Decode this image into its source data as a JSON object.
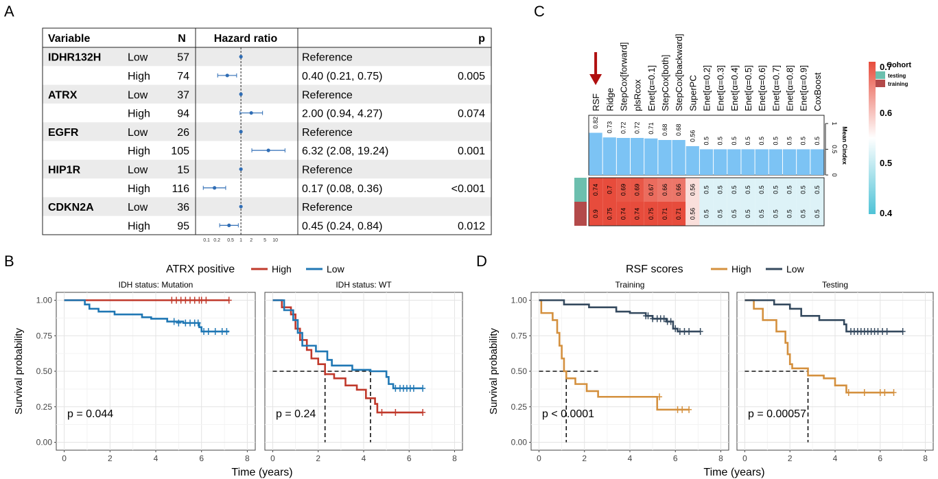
{
  "panel_labels": [
    "A",
    "B",
    "C",
    "D"
  ],
  "forest": {
    "headers": {
      "variable": "Variable",
      "n": "N",
      "hr": "Hazard ratio",
      "p": "p"
    },
    "rows": [
      {
        "variable": "IDHR132H",
        "level": "Low",
        "n": "57",
        "text": "Reference",
        "p": "",
        "hr": 1,
        "lo": 1,
        "hi": 1,
        "ref": true
      },
      {
        "variable": "",
        "level": "High",
        "n": "74",
        "text": "0.40 (0.21, 0.75)",
        "p": "0.005",
        "hr": 0.4,
        "lo": 0.21,
        "hi": 0.75,
        "ref": false
      },
      {
        "variable": "ATRX",
        "level": "Low",
        "n": "37",
        "text": "Reference",
        "p": "",
        "hr": 1,
        "lo": 1,
        "hi": 1,
        "ref": true
      },
      {
        "variable": "",
        "level": "High",
        "n": "94",
        "text": "2.00 (0.94, 4.27)",
        "p": "0.074",
        "hr": 2.0,
        "lo": 0.94,
        "hi": 4.27,
        "ref": false
      },
      {
        "variable": "EGFR",
        "level": "Low",
        "n": "26",
        "text": "Reference",
        "p": "",
        "hr": 1,
        "lo": 1,
        "hi": 1,
        "ref": true
      },
      {
        "variable": "",
        "level": "High",
        "n": "105",
        "text": "6.32 (2.08, 19.24)",
        "p": "0.001",
        "hr": 6.32,
        "lo": 2.08,
        "hi": 19.24,
        "ref": false
      },
      {
        "variable": "HIP1R",
        "level": "Low",
        "n": "15",
        "text": "Reference",
        "p": "",
        "hr": 1,
        "lo": 1,
        "hi": 1,
        "ref": true
      },
      {
        "variable": "",
        "level": "High",
        "n": "116",
        "text": "0.17 (0.08, 0.36)",
        "p": "<0.001",
        "hr": 0.17,
        "lo": 0.08,
        "hi": 0.36,
        "ref": false
      },
      {
        "variable": "CDKN2A",
        "level": "Low",
        "n": "36",
        "text": "Reference",
        "p": "",
        "hr": 1,
        "lo": 1,
        "hi": 1,
        "ref": true
      },
      {
        "variable": "",
        "level": "High",
        "n": "95",
        "text": "0.45 (0.24, 0.84)",
        "p": "0.012",
        "hr": 0.45,
        "lo": 0.24,
        "hi": 0.84,
        "ref": false
      }
    ],
    "axis_ticks": [
      0.1,
      0.2,
      0.5,
      1,
      2,
      5,
      10
    ],
    "axis_tick_labels": [
      "0.1",
      "0.2",
      "0.5",
      "1",
      "2",
      "5",
      "10"
    ],
    "colors": {
      "point": "#2f6db5",
      "band": "#ebebeb"
    }
  },
  "heatmap": {
    "models": [
      "RSF",
      "Ridge",
      "StepCox[forward]",
      "plsRcox",
      "Enet[α=0.1]",
      "StepCox[both]",
      "StepCox[backward]",
      "SuperPC",
      "Enet[α=0.2]",
      "Enet[α=0.3]",
      "Enet[α=0.4]",
      "Enet[α=0.5]",
      "Enet[α=0.6]",
      "Enet[α=0.7]",
      "Enet[α=0.8]",
      "Enet[α=0.9]",
      "CoxBoost"
    ],
    "mean_cindex": [
      0.82,
      0.73,
      0.72,
      0.72,
      0.71,
      0.68,
      0.68,
      0.56,
      0.5,
      0.5,
      0.5,
      0.5,
      0.5,
      0.5,
      0.5,
      0.5,
      0.5
    ],
    "mean_cindex_labels": [
      "0.82",
      "0.73",
      "0.72",
      "0.72",
      "0.71",
      "0.68",
      "0.68",
      "0.56",
      "0.5",
      "0.5",
      "0.5",
      "0.5",
      "0.5",
      "0.5",
      "0.5",
      "0.5",
      "0.5"
    ],
    "testing": [
      0.74,
      0.7,
      0.69,
      0.69,
      0.67,
      0.66,
      0.66,
      0.56,
      0.5,
      0.5,
      0.5,
      0.5,
      0.5,
      0.5,
      0.5,
      0.5,
      0.5
    ],
    "testing_labels": [
      "0.74",
      "0.7",
      "0.69",
      "0.69",
      "0.67",
      "0.66",
      "0.66",
      "0.56",
      "0.5",
      "0.5",
      "0.5",
      "0.5",
      "0.5",
      "0.5",
      "0.5",
      "0.5",
      "0.5"
    ],
    "training": [
      0.9,
      0.75,
      0.74,
      0.74,
      0.75,
      0.71,
      0.71,
      0.56,
      0.5,
      0.5,
      0.5,
      0.5,
      0.5,
      0.5,
      0.5,
      0.5,
      0.5
    ],
    "training_labels": [
      "0.9",
      "0.75",
      "0.74",
      "0.74",
      "0.75",
      "0.71",
      "0.71",
      "0.56",
      "0.5",
      "0.5",
      "0.5",
      "0.5",
      "0.5",
      "0.5",
      "0.5",
      "0.5",
      "0.5"
    ],
    "bar_axis_label": "Mean Cindex",
    "bar_axis_ticks": [
      "0",
      "0.5",
      "1"
    ],
    "legend_title": "Cohort",
    "legend_items": [
      {
        "label": "testing",
        "color": "#6cbfae"
      },
      {
        "label": "training",
        "color": "#b34a4a"
      }
    ],
    "colorbar_ticks": [
      "0.7",
      "0.6",
      "0.5",
      "0.4"
    ],
    "colors": {
      "bar": "#7cc3f4",
      "high": "#e74c3c",
      "mid": "#ffffff",
      "low": "#4fc3d7",
      "arrow": "#b01010"
    }
  },
  "chart_data": [
    {
      "type": "line",
      "panel": "B-left",
      "legend_title": "ATRX positive",
      "legend": [
        {
          "name": "High",
          "color": "#c0392b"
        },
        {
          "name": "Low",
          "color": "#1f77b4"
        }
      ],
      "subtitle": "IDH status: Mutation",
      "xlabel": "Time (years)",
      "ylabel": "Survival probability",
      "xlim": [
        0,
        8
      ],
      "ylim": [
        0,
        1
      ],
      "xticks": [
        "0",
        "2",
        "4",
        "6",
        "8"
      ],
      "yticks": [
        "0.00",
        "0.25",
        "0.50",
        "0.75",
        "1.00"
      ],
      "pvalue": "p = 0.044",
      "series": [
        {
          "name": "High",
          "color": "#c0392b",
          "steps": [
            [
              0,
              1.0
            ],
            [
              7.2,
              1.0
            ]
          ],
          "censor": [
            [
              4.7,
              1.0
            ],
            [
              4.9,
              1.0
            ],
            [
              5.1,
              1.0
            ],
            [
              5.3,
              1.0
            ],
            [
              5.5,
              1.0
            ],
            [
              5.7,
              1.0
            ],
            [
              5.9,
              1.0
            ],
            [
              6.0,
              1.0
            ],
            [
              6.2,
              1.0
            ],
            [
              7.2,
              1.0
            ]
          ]
        },
        {
          "name": "Low",
          "color": "#1f77b4",
          "steps": [
            [
              0,
              1.0
            ],
            [
              0.9,
              0.97
            ],
            [
              1.1,
              0.94
            ],
            [
              1.5,
              0.92
            ],
            [
              2.2,
              0.9
            ],
            [
              3.4,
              0.88
            ],
            [
              3.8,
              0.87
            ],
            [
              4.5,
              0.85
            ],
            [
              5.2,
              0.84
            ],
            [
              5.9,
              0.81
            ],
            [
              6.0,
              0.78
            ],
            [
              7.2,
              0.78
            ]
          ],
          "censor": [
            [
              4.8,
              0.85
            ],
            [
              5.0,
              0.84
            ],
            [
              5.3,
              0.84
            ],
            [
              5.5,
              0.84
            ],
            [
              5.7,
              0.84
            ],
            [
              5.85,
              0.84
            ],
            [
              6.1,
              0.78
            ],
            [
              6.3,
              0.78
            ],
            [
              6.6,
              0.78
            ],
            [
              6.9,
              0.78
            ],
            [
              7.1,
              0.78
            ]
          ]
        }
      ]
    },
    {
      "type": "line",
      "panel": "B-right",
      "subtitle": "IDH status: WT",
      "xlabel": "Time (years)",
      "xlim": [
        0,
        8
      ],
      "ylim": [
        0,
        1
      ],
      "xticks": [
        "0",
        "2",
        "4",
        "6",
        "8"
      ],
      "pvalue": "p = 0.24",
      "median_lines": [
        2.3,
        4.3
      ],
      "series": [
        {
          "name": "High",
          "color": "#c0392b",
          "steps": [
            [
              0,
              1.0
            ],
            [
              0.4,
              0.95
            ],
            [
              0.8,
              0.9
            ],
            [
              1.0,
              0.8
            ],
            [
              1.2,
              0.72
            ],
            [
              1.5,
              0.65
            ],
            [
              1.7,
              0.59
            ],
            [
              2.0,
              0.55
            ],
            [
              2.3,
              0.48
            ],
            [
              2.7,
              0.45
            ],
            [
              3.2,
              0.4
            ],
            [
              3.7,
              0.37
            ],
            [
              4.1,
              0.31
            ],
            [
              4.5,
              0.27
            ],
            [
              4.6,
              0.21
            ],
            [
              6.6,
              0.21
            ]
          ],
          "censor": [
            [
              4.8,
              0.21
            ],
            [
              5.4,
              0.21
            ],
            [
              6.6,
              0.21
            ]
          ]
        },
        {
          "name": "Low",
          "color": "#1f77b4",
          "steps": [
            [
              0,
              1.0
            ],
            [
              0.5,
              0.93
            ],
            [
              0.9,
              0.86
            ],
            [
              1.1,
              0.77
            ],
            [
              1.3,
              0.68
            ],
            [
              1.9,
              0.64
            ],
            [
              2.4,
              0.58
            ],
            [
              2.6,
              0.54
            ],
            [
              3.5,
              0.51
            ],
            [
              4.3,
              0.5
            ],
            [
              5.0,
              0.46
            ],
            [
              5.1,
              0.41
            ],
            [
              5.3,
              0.38
            ],
            [
              6.6,
              0.38
            ]
          ],
          "censor": [
            [
              5.4,
              0.38
            ],
            [
              5.6,
              0.38
            ],
            [
              5.75,
              0.38
            ],
            [
              5.9,
              0.38
            ],
            [
              6.05,
              0.38
            ],
            [
              6.2,
              0.38
            ],
            [
              6.6,
              0.38
            ]
          ]
        }
      ]
    },
    {
      "type": "line",
      "panel": "D-left",
      "legend_title": "RSF scores",
      "legend": [
        {
          "name": "High",
          "color": "#d4903e"
        },
        {
          "name": "Low",
          "color": "#34495e"
        }
      ],
      "subtitle": "Training",
      "xlabel": "Time (years)",
      "ylabel": "Survival probability",
      "xlim": [
        0,
        8
      ],
      "ylim": [
        0,
        1
      ],
      "xticks": [
        "0",
        "2",
        "4",
        "6",
        "8"
      ],
      "yticks": [
        "0.00",
        "0.25",
        "0.50",
        "0.75",
        "1.00"
      ],
      "pvalue": "p < 0.0001",
      "median_lines": [
        1.2
      ],
      "series": [
        {
          "name": "High",
          "color": "#d4903e",
          "steps": [
            [
              0,
              1.0
            ],
            [
              0.1,
              0.91
            ],
            [
              0.6,
              0.86
            ],
            [
              0.8,
              0.77
            ],
            [
              0.9,
              0.68
            ],
            [
              1.0,
              0.59
            ],
            [
              1.1,
              0.5
            ],
            [
              1.2,
              0.45
            ],
            [
              1.6,
              0.41
            ],
            [
              2.1,
              0.36
            ],
            [
              2.6,
              0.32
            ],
            [
              5.2,
              0.23
            ],
            [
              6.6,
              0.23
            ]
          ],
          "censor": [
            [
              5.3,
              0.32
            ],
            [
              6.1,
              0.23
            ],
            [
              6.3,
              0.23
            ],
            [
              6.6,
              0.23
            ]
          ]
        },
        {
          "name": "Low",
          "color": "#34495e",
          "steps": [
            [
              0,
              1.0
            ],
            [
              1.1,
              0.97
            ],
            [
              2.2,
              0.95
            ],
            [
              3.4,
              0.92
            ],
            [
              4.0,
              0.91
            ],
            [
              4.7,
              0.89
            ],
            [
              5.0,
              0.87
            ],
            [
              5.6,
              0.85
            ],
            [
              5.9,
              0.8
            ],
            [
              6.1,
              0.78
            ],
            [
              7.1,
              0.78
            ]
          ],
          "censor": [
            [
              4.7,
              0.89
            ],
            [
              4.8,
              0.89
            ],
            [
              5.0,
              0.87
            ],
            [
              5.2,
              0.87
            ],
            [
              5.35,
              0.87
            ],
            [
              5.5,
              0.87
            ],
            [
              5.65,
              0.85
            ],
            [
              5.8,
              0.85
            ],
            [
              6.0,
              0.8
            ],
            [
              6.2,
              0.78
            ],
            [
              6.4,
              0.78
            ],
            [
              6.6,
              0.78
            ],
            [
              7.1,
              0.78
            ]
          ]
        }
      ]
    },
    {
      "type": "line",
      "panel": "D-right",
      "subtitle": "Testing",
      "xlabel": "Time (years)",
      "xlim": [
        0,
        8
      ],
      "ylim": [
        0,
        1
      ],
      "xticks": [
        "0",
        "2",
        "4",
        "6",
        "8"
      ],
      "pvalue": "p = 0.00057",
      "median_lines": [
        2.8
      ],
      "series": [
        {
          "name": "High",
          "color": "#d4903e",
          "steps": [
            [
              0,
              1.0
            ],
            [
              0.4,
              0.94
            ],
            [
              0.8,
              0.86
            ],
            [
              1.4,
              0.78
            ],
            [
              1.8,
              0.7
            ],
            [
              1.9,
              0.62
            ],
            [
              2.0,
              0.55
            ],
            [
              2.1,
              0.52
            ],
            [
              2.8,
              0.47
            ],
            [
              3.5,
              0.45
            ],
            [
              4.0,
              0.4
            ],
            [
              4.5,
              0.35
            ],
            [
              6.6,
              0.35
            ]
          ],
          "censor": [
            [
              4.6,
              0.35
            ],
            [
              5.3,
              0.35
            ],
            [
              6.0,
              0.35
            ],
            [
              6.2,
              0.35
            ],
            [
              6.6,
              0.35
            ]
          ]
        },
        {
          "name": "Low",
          "color": "#34495e",
          "steps": [
            [
              0,
              1.0
            ],
            [
              1.3,
              0.97
            ],
            [
              2.0,
              0.94
            ],
            [
              2.5,
              0.89
            ],
            [
              3.3,
              0.86
            ],
            [
              4.4,
              0.83
            ],
            [
              4.5,
              0.78
            ],
            [
              7.0,
              0.78
            ]
          ],
          "censor": [
            [
              4.7,
              0.78
            ],
            [
              4.85,
              0.78
            ],
            [
              5.0,
              0.78
            ],
            [
              5.15,
              0.78
            ],
            [
              5.3,
              0.78
            ],
            [
              5.45,
              0.78
            ],
            [
              5.6,
              0.78
            ],
            [
              5.75,
              0.78
            ],
            [
              5.9,
              0.78
            ],
            [
              6.1,
              0.78
            ],
            [
              6.3,
              0.78
            ],
            [
              7.0,
              0.78
            ]
          ]
        }
      ]
    }
  ]
}
